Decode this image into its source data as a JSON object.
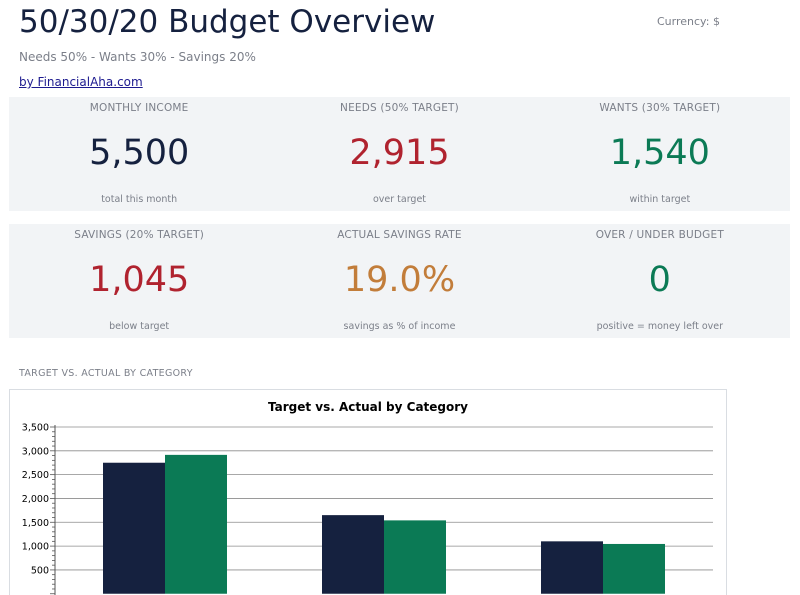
{
  "header": {
    "title": "50/30/20 Budget Overview",
    "currency_label": "Currency: $",
    "subtitle": "Needs 50% - Wants 30% - Savings 20%",
    "source_link": "by FinancialAha.com"
  },
  "kpis": [
    {
      "label": "MONTHLY INCOME",
      "value": "5,500",
      "note": "total this month",
      "color": "#15213f"
    },
    {
      "label": "NEEDS (50% TARGET)",
      "value": "2,915",
      "note": "over target",
      "color": "#b0232f"
    },
    {
      "label": "WANTS (30% TARGET)",
      "value": "1,540",
      "note": "within target",
      "color": "#0b7a55"
    },
    {
      "label": "SAVINGS (20% TARGET)",
      "value": "1,045",
      "note": "below target",
      "color": "#b0232f"
    },
    {
      "label": "ACTUAL SAVINGS RATE",
      "value": "19.0%",
      "note": "savings as % of income",
      "color": "#c27d3a"
    },
    {
      "label": "OVER / UNDER BUDGET",
      "value": "0",
      "note": "positive = money left over",
      "color": "#0b7a55"
    }
  ],
  "section": {
    "chart_heading": "TARGET VS. ACTUAL BY CATEGORY"
  },
  "colors": {
    "target_bar": "#15213f",
    "actual_bar": "#0b7a55",
    "panel_bg": "#f2f4f6",
    "muted_text": "#7b7f89"
  },
  "chart_data": {
    "type": "bar",
    "title": "Target vs. Actual by Category",
    "categories": [
      "",
      "",
      ""
    ],
    "series": [
      {
        "values": [
          2750,
          1650,
          1100
        ]
      },
      {
        "values": [
          2915,
          1540,
          1045
        ]
      }
    ],
    "y_ticks": [
      "500",
      "1,000",
      "1,500",
      "2,000",
      "2,500",
      "3,000",
      "3,500"
    ],
    "ylim": [
      0,
      3500
    ],
    "grid": true
  }
}
